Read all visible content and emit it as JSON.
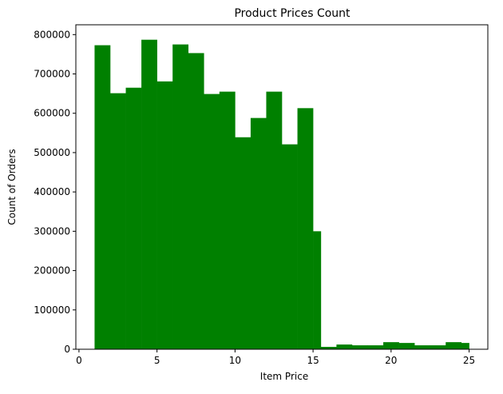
{
  "chart_data": {
    "type": "bar",
    "title": "Product Prices Count",
    "xlabel": "Item Price",
    "ylabel": "Count of Orders",
    "xlim": [
      -0.2,
      26.2
    ],
    "ylim": [
      0,
      825000
    ],
    "xticks": [
      0,
      5,
      10,
      15,
      20,
      25
    ],
    "yticks": [
      0,
      100000,
      200000,
      300000,
      400000,
      500000,
      600000,
      700000,
      800000
    ],
    "bar_color": "#008000",
    "grid": false,
    "bins": [
      {
        "x0": 1.0,
        "x1": 2.0,
        "value": 773000
      },
      {
        "x0": 2.0,
        "x1": 3.0,
        "value": 651000
      },
      {
        "x0": 3.0,
        "x1": 4.0,
        "value": 665000
      },
      {
        "x0": 4.0,
        "x1": 5.0,
        "value": 787000
      },
      {
        "x0": 5.0,
        "x1": 6.0,
        "value": 681000
      },
      {
        "x0": 6.0,
        "x1": 7.0,
        "value": 775000
      },
      {
        "x0": 7.0,
        "x1": 8.0,
        "value": 753000
      },
      {
        "x0": 8.0,
        "x1": 9.0,
        "value": 649000
      },
      {
        "x0": 9.0,
        "x1": 10.0,
        "value": 655000
      },
      {
        "x0": 10.0,
        "x1": 11.0,
        "value": 539000
      },
      {
        "x0": 11.0,
        "x1": 12.0,
        "value": 588000
      },
      {
        "x0": 12.0,
        "x1": 13.0,
        "value": 655000
      },
      {
        "x0": 13.0,
        "x1": 14.0,
        "value": 521000
      },
      {
        "x0": 14.0,
        "x1": 15.0,
        "value": 613000
      },
      {
        "x0": 15.0,
        "x1": 15.5,
        "value": 300000
      },
      {
        "x0": 15.5,
        "x1": 16.5,
        "value": 6000
      },
      {
        "x0": 16.5,
        "x1": 17.5,
        "value": 12000
      },
      {
        "x0": 17.5,
        "x1": 18.5,
        "value": 10000
      },
      {
        "x0": 18.5,
        "x1": 19.5,
        "value": 10000
      },
      {
        "x0": 19.5,
        "x1": 20.5,
        "value": 18000
      },
      {
        "x0": 20.5,
        "x1": 21.5,
        "value": 16000
      },
      {
        "x0": 21.5,
        "x1": 22.5,
        "value": 10000
      },
      {
        "x0": 22.5,
        "x1": 23.5,
        "value": 10000
      },
      {
        "x0": 23.5,
        "x1": 24.5,
        "value": 18000
      },
      {
        "x0": 24.5,
        "x1": 25.0,
        "value": 16000
      }
    ]
  }
}
